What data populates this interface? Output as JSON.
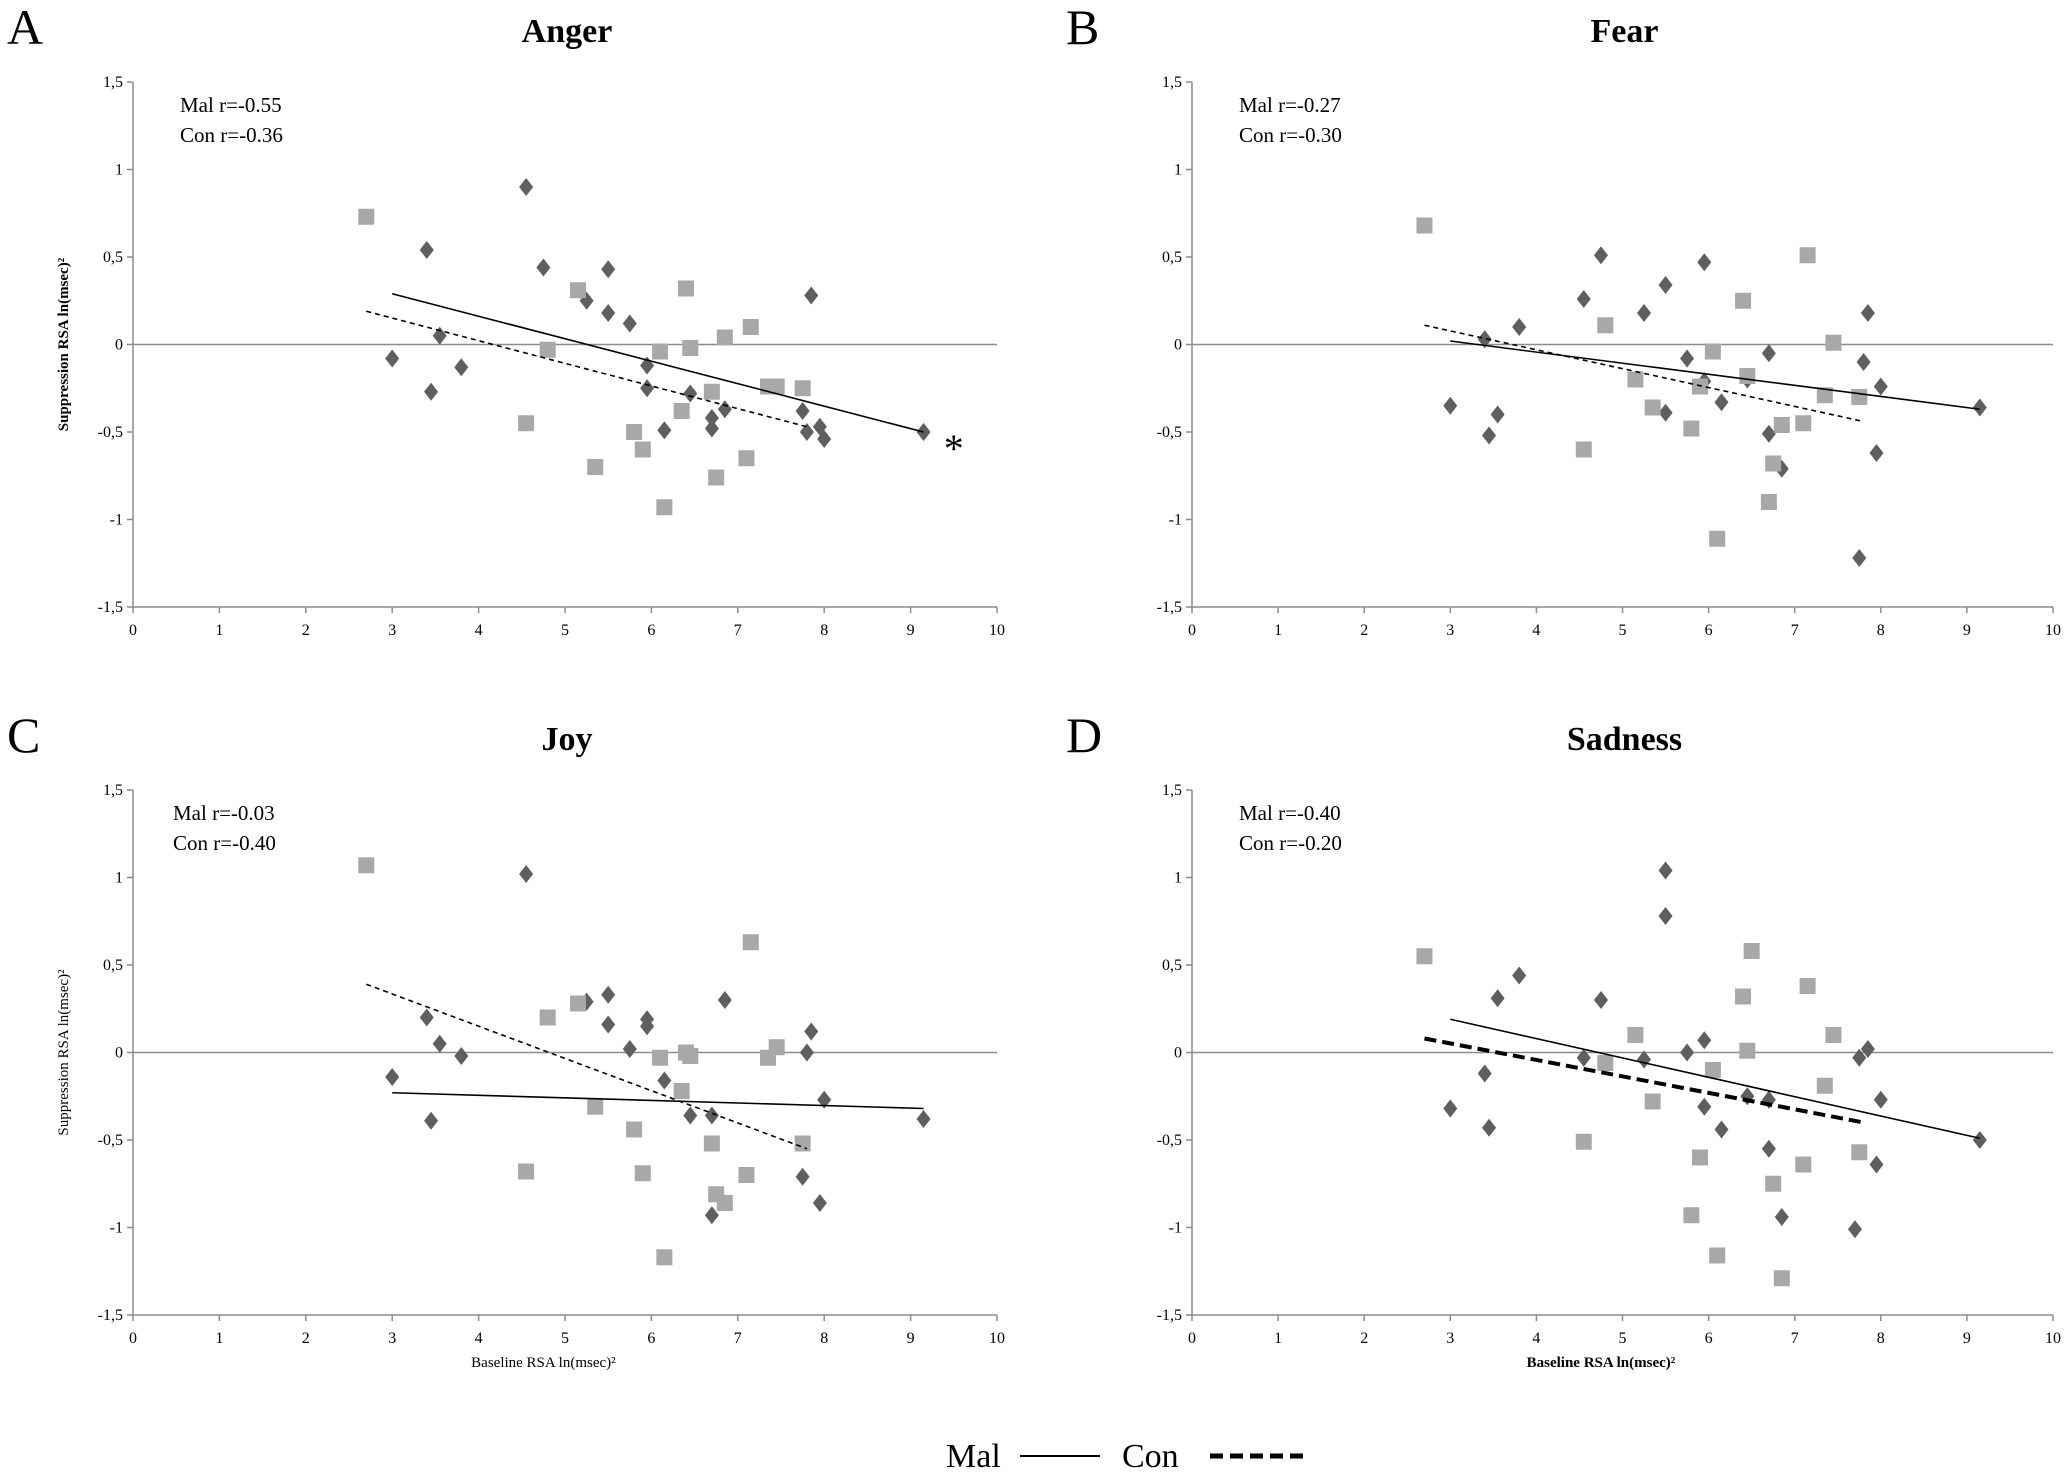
{
  "legend": {
    "mal_label": "Mal",
    "con_label": "Con"
  },
  "colors": {
    "mal_marker": "#5f5f5f",
    "con_marker": "#a8a8a8",
    "line": "#000000",
    "axis": "#8c8c8c"
  },
  "chart_data": [
    {
      "type": "scatter",
      "letter": "A",
      "title": "Anger",
      "xlabel": "",
      "ylabel": "Suppression RSA ln(msec)²",
      "ylabel_bold": true,
      "xlim": [
        0,
        10
      ],
      "ylim": [
        -1.5,
        1.5
      ],
      "x_ticks": [
        "0",
        "1",
        "2",
        "3",
        "4",
        "5",
        "6",
        "7",
        "8",
        "9",
        "10"
      ],
      "y_ticks": [
        "-1,5",
        "-1",
        "-0,5",
        "0",
        "0,5",
        "1",
        "1,5"
      ],
      "annotations": [
        "Mal r=-0.55",
        "Con r=-0.36"
      ],
      "significance": "*",
      "con_dashed_bold": false,
      "series": [
        {
          "name": "Mal",
          "marker": "diamond",
          "x": [
            3.0,
            3.4,
            3.45,
            3.55,
            3.8,
            4.55,
            4.75,
            5.25,
            5.5,
            5.5,
            5.75,
            5.95,
            5.95,
            6.15,
            6.45,
            6.7,
            6.7,
            6.85,
            7.75,
            7.8,
            7.85,
            7.95,
            8.0,
            9.15
          ],
          "y": [
            -0.08,
            0.54,
            -0.27,
            0.05,
            -0.13,
            0.9,
            0.44,
            0.25,
            0.43,
            0.18,
            0.12,
            -0.12,
            -0.25,
            -0.49,
            -0.28,
            -0.42,
            -0.48,
            -0.37,
            -0.38,
            -0.5,
            0.28,
            -0.47,
            -0.54,
            -0.5
          ]
        },
        {
          "name": "Con",
          "marker": "square",
          "x": [
            2.7,
            4.55,
            4.8,
            5.15,
            5.35,
            5.8,
            5.9,
            6.1,
            6.15,
            6.35,
            6.4,
            6.45,
            6.7,
            6.75,
            6.85,
            7.1,
            7.15,
            7.35,
            7.45,
            7.75
          ],
          "y": [
            0.73,
            -0.45,
            -0.03,
            0.31,
            -0.7,
            -0.5,
            -0.6,
            -0.04,
            -0.93,
            -0.38,
            0.32,
            -0.02,
            -0.27,
            -0.76,
            0.04,
            -0.65,
            0.1,
            -0.24,
            -0.24,
            -0.25
          ]
        }
      ],
      "fit_lines": [
        {
          "name": "Mal",
          "x": [
            3.0,
            9.15
          ],
          "y": [
            0.29,
            -0.5
          ]
        },
        {
          "name": "Con",
          "x": [
            2.7,
            7.8
          ],
          "y": [
            0.19,
            -0.47
          ]
        }
      ]
    },
    {
      "type": "scatter",
      "letter": "B",
      "title": "Fear",
      "xlabel": "",
      "ylabel": "",
      "ylabel_bold": false,
      "xlim": [
        0,
        10
      ],
      "ylim": [
        -1.5,
        1.5
      ],
      "x_ticks": [
        "0",
        "1",
        "2",
        "3",
        "4",
        "5",
        "6",
        "7",
        "8",
        "9",
        "10"
      ],
      "y_ticks": [
        "-1,5",
        "-1",
        "-0,5",
        "0",
        "0,5",
        "1",
        "1,5"
      ],
      "annotations": [
        "Mal r=-0.27",
        "Con r=-0.30"
      ],
      "significance": "",
      "con_dashed_bold": false,
      "series": [
        {
          "name": "Mal",
          "marker": "diamond",
          "x": [
            3.0,
            3.4,
            3.45,
            3.55,
            3.8,
            4.55,
            4.75,
            5.25,
            5.5,
            5.5,
            5.75,
            5.95,
            5.95,
            6.15,
            6.45,
            6.7,
            6.7,
            6.85,
            7.75,
            7.8,
            7.85,
            7.95,
            8.0,
            9.15
          ],
          "y": [
            -0.35,
            0.03,
            -0.52,
            -0.4,
            0.1,
            0.26,
            0.51,
            0.18,
            -0.39,
            0.34,
            -0.08,
            0.47,
            -0.21,
            -0.33,
            -0.2,
            -0.05,
            -0.51,
            -0.71,
            -1.22,
            -0.1,
            0.18,
            -0.62,
            -0.24,
            -0.36
          ]
        },
        {
          "name": "Con",
          "marker": "square",
          "x": [
            2.7,
            4.55,
            4.8,
            5.15,
            5.35,
            5.8,
            5.9,
            6.05,
            6.1,
            6.4,
            6.45,
            6.7,
            6.75,
            6.85,
            7.1,
            7.15,
            7.35,
            7.45,
            7.75
          ],
          "y": [
            0.68,
            -0.6,
            0.11,
            -0.2,
            -0.36,
            -0.48,
            -0.24,
            -0.04,
            -1.11,
            0.25,
            -0.18,
            -0.9,
            -0.68,
            -0.46,
            -0.45,
            0.51,
            -0.29,
            0.01,
            -0.3
          ]
        }
      ],
      "fit_lines": [
        {
          "name": "Mal",
          "x": [
            3.0,
            9.15
          ],
          "y": [
            0.02,
            -0.37
          ]
        },
        {
          "name": "Con",
          "x": [
            2.7,
            7.8
          ],
          "y": [
            0.11,
            -0.44
          ]
        }
      ]
    },
    {
      "type": "scatter",
      "letter": "C",
      "title": "Joy",
      "xlabel": "Baseline RSA ln(msec)²",
      "xlabel_bold": false,
      "ylabel": "Suppression RSA ln(msec)²",
      "ylabel_bold": false,
      "xlim": [
        0,
        10
      ],
      "ylim": [
        -1.5,
        1.5
      ],
      "x_ticks": [
        "0",
        "1",
        "2",
        "3",
        "4",
        "5",
        "6",
        "7",
        "8",
        "9",
        "10"
      ],
      "y_ticks": [
        "-1,5",
        "-1",
        "-0,5",
        "0",
        "0,5",
        "1",
        "1,5"
      ],
      "annotations": [
        "Mal r=-0.03",
        "Con r=-0.40"
      ],
      "significance": "",
      "con_dashed_bold": false,
      "series": [
        {
          "name": "Mal",
          "marker": "diamond",
          "x": [
            3.0,
            3.4,
            3.45,
            3.55,
            3.8,
            4.55,
            5.25,
            5.5,
            5.5,
            5.75,
            5.95,
            5.95,
            6.15,
            6.45,
            6.7,
            6.7,
            6.85,
            7.75,
            7.8,
            7.85,
            7.95,
            8.0,
            9.15
          ],
          "y": [
            -0.14,
            0.2,
            -0.39,
            0.05,
            -0.02,
            1.02,
            0.29,
            0.33,
            0.16,
            0.02,
            0.19,
            0.15,
            -0.16,
            -0.36,
            -0.93,
            -0.36,
            0.3,
            -0.71,
            0.0,
            0.12,
            -0.86,
            -0.27,
            -0.38
          ]
        },
        {
          "name": "Con",
          "marker": "square",
          "x": [
            2.7,
            4.55,
            4.8,
            5.15,
            5.35,
            5.8,
            5.9,
            6.1,
            6.15,
            6.35,
            6.4,
            6.45,
            6.7,
            6.75,
            6.85,
            7.1,
            7.15,
            7.35,
            7.45,
            7.75
          ],
          "y": [
            1.07,
            -0.68,
            0.2,
            0.28,
            -0.31,
            -0.44,
            -0.69,
            -0.03,
            -1.17,
            -0.22,
            0.0,
            -0.02,
            -0.52,
            -0.81,
            -0.86,
            -0.7,
            0.63,
            -0.03,
            0.03,
            -0.52
          ]
        }
      ],
      "fit_lines": [
        {
          "name": "Mal",
          "x": [
            3.0,
            9.15
          ],
          "y": [
            -0.23,
            -0.32
          ]
        },
        {
          "name": "Con",
          "x": [
            2.7,
            7.8
          ],
          "y": [
            0.39,
            -0.55
          ]
        }
      ]
    },
    {
      "type": "scatter",
      "letter": "D",
      "title": "Sadness",
      "xlabel": "Baseline RSA ln(msec)²",
      "xlabel_bold": true,
      "ylabel": "",
      "ylabel_bold": false,
      "xlim": [
        0,
        10
      ],
      "ylim": [
        -1.5,
        1.5
      ],
      "x_ticks": [
        "0",
        "1",
        "2",
        "3",
        "4",
        "5",
        "6",
        "7",
        "8",
        "9",
        "10"
      ],
      "y_ticks": [
        "-1,5",
        "-1",
        "-0,5",
        "0",
        "0,5",
        "1",
        "1,5"
      ],
      "annotations": [
        "Mal r=-0.40",
        "Con r=-0.20"
      ],
      "significance": "",
      "con_dashed_bold": true,
      "series": [
        {
          "name": "Mal",
          "marker": "diamond",
          "x": [
            3.0,
            3.4,
            3.45,
            3.55,
            3.8,
            4.55,
            4.75,
            5.25,
            5.5,
            5.5,
            5.75,
            5.95,
            5.95,
            6.15,
            6.45,
            6.7,
            6.7,
            6.85,
            7.7,
            7.75,
            7.85,
            7.95,
            8.0,
            9.15
          ],
          "y": [
            -0.32,
            -0.12,
            -0.43,
            0.31,
            0.44,
            -0.03,
            0.3,
            -0.04,
            1.04,
            0.78,
            0.0,
            0.07,
            -0.31,
            -0.44,
            -0.25,
            -0.27,
            -0.55,
            -0.94,
            -1.01,
            -0.03,
            0.02,
            -0.64,
            -0.27,
            -0.5
          ]
        },
        {
          "name": "Con",
          "marker": "square",
          "x": [
            2.7,
            4.55,
            4.8,
            5.15,
            5.35,
            5.8,
            5.9,
            6.05,
            6.1,
            6.4,
            6.45,
            6.5,
            6.75,
            6.85,
            7.1,
            7.15,
            7.35,
            7.45,
            7.75
          ],
          "y": [
            0.55,
            -0.51,
            -0.06,
            0.1,
            -0.28,
            -0.93,
            -0.6,
            -0.1,
            -1.16,
            0.32,
            0.01,
            0.58,
            -0.75,
            -1.29,
            -0.64,
            0.38,
            -0.19,
            0.1,
            -0.57
          ]
        }
      ],
      "fit_lines": [
        {
          "name": "Mal",
          "x": [
            3.0,
            9.15
          ],
          "y": [
            0.19,
            -0.49
          ]
        },
        {
          "name": "Con",
          "x": [
            2.7,
            7.8
          ],
          "y": [
            0.08,
            -0.4
          ]
        }
      ]
    }
  ]
}
